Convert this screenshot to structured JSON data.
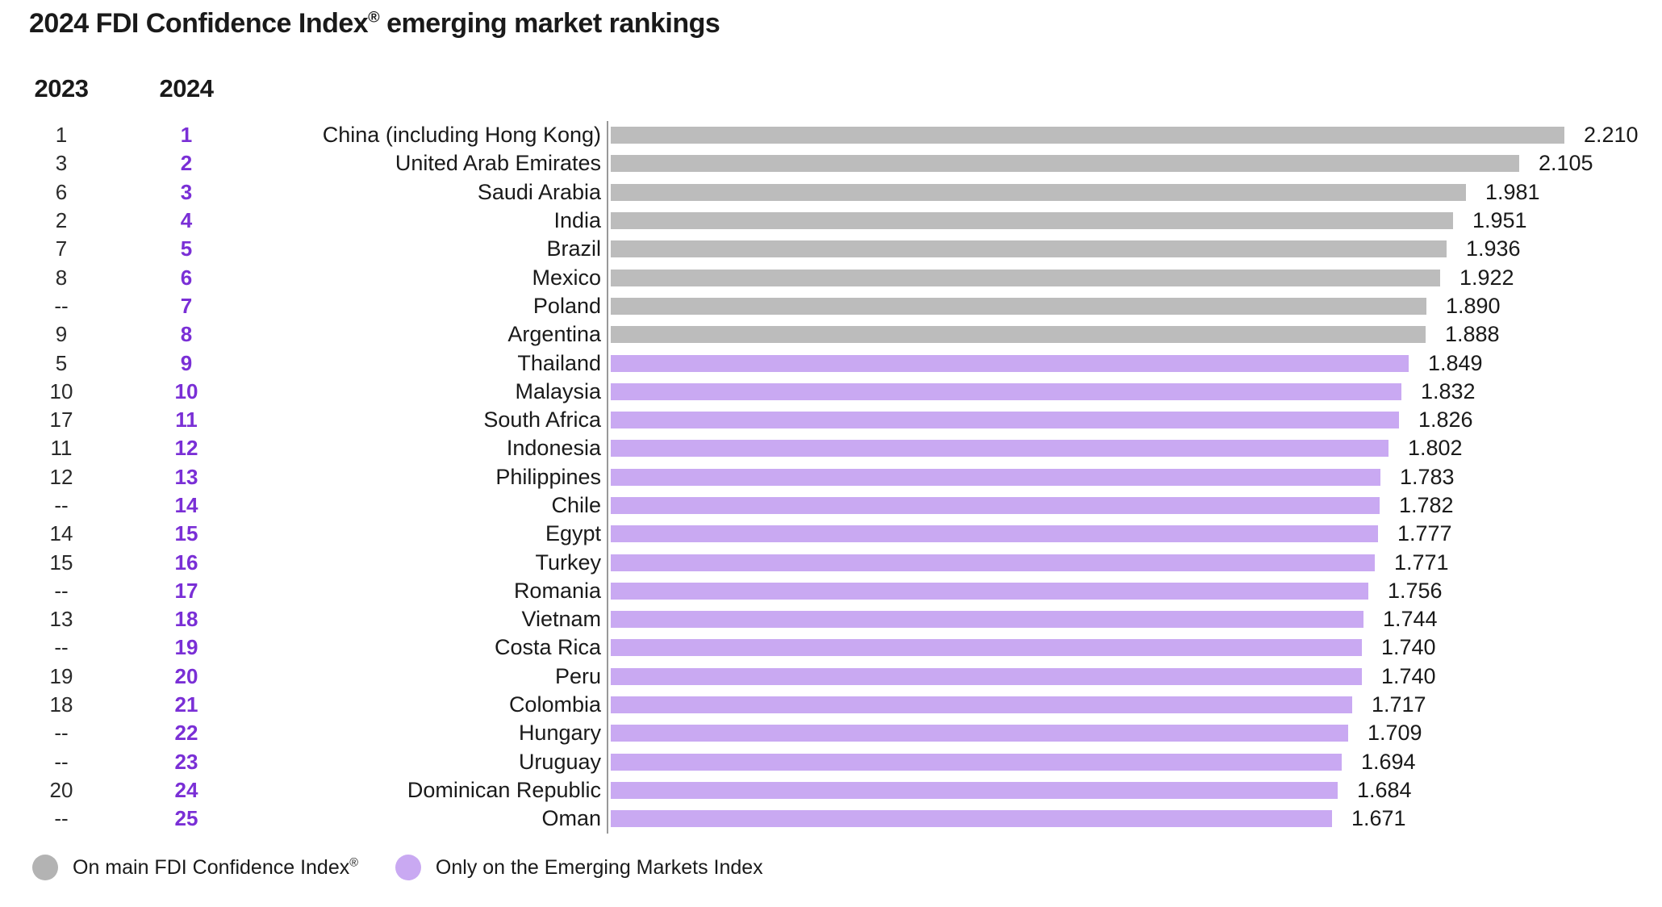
{
  "title": {
    "prefix": "2024 FDI Confidence Index",
    "registered": "®",
    "suffix": " emerging market rankings"
  },
  "column_headers": {
    "year_prev": "2023",
    "year_curr": "2024"
  },
  "legend": {
    "main_index": {
      "label_prefix": "On main FDI Confidence Index",
      "registered": "®",
      "color": "#b3b3b3"
    },
    "emerging_only": {
      "label": "Only on the Emerging Markets Index",
      "color": "#c9a9f2"
    }
  },
  "colors": {
    "text": "#1a1a1a",
    "bar_main": "#bcbcbc",
    "bar_emerging": "#c9a9f2",
    "rank_2024_text": "#7a2fd6",
    "axis_line": "#999999",
    "legend_main_dot": "#b3b3b3",
    "legend_emerging_dot": "#c9a9f2"
  },
  "chart_data": {
    "type": "bar",
    "orientation": "horizontal",
    "title": "2024 FDI Confidence Index® emerging market rankings",
    "value_range": [
      0,
      2.21
    ],
    "grid": false,
    "legend_position": "bottom-left",
    "groups": {
      "main": "On main FDI Confidence Index®",
      "emerging": "Only on the Emerging Markets Index"
    },
    "rows": [
      {
        "rank_2023": "1",
        "rank_2024": "1",
        "country": "China (including Hong Kong)",
        "value": 2.21,
        "value_label": "2.210",
        "group": "main"
      },
      {
        "rank_2023": "3",
        "rank_2024": "2",
        "country": "United Arab Emirates",
        "value": 2.105,
        "value_label": "2.105",
        "group": "main"
      },
      {
        "rank_2023": "6",
        "rank_2024": "3",
        "country": "Saudi Arabia",
        "value": 1.981,
        "value_label": "1.981",
        "group": "main"
      },
      {
        "rank_2023": "2",
        "rank_2024": "4",
        "country": "India",
        "value": 1.951,
        "value_label": "1.951",
        "group": "main"
      },
      {
        "rank_2023": "7",
        "rank_2024": "5",
        "country": "Brazil",
        "value": 1.936,
        "value_label": "1.936",
        "group": "main"
      },
      {
        "rank_2023": "8",
        "rank_2024": "6",
        "country": "Mexico",
        "value": 1.922,
        "value_label": "1.922",
        "group": "main"
      },
      {
        "rank_2023": "--",
        "rank_2024": "7",
        "country": "Poland",
        "value": 1.89,
        "value_label": "1.890",
        "group": "main"
      },
      {
        "rank_2023": "9",
        "rank_2024": "8",
        "country": "Argentina",
        "value": 1.888,
        "value_label": "1.888",
        "group": "main"
      },
      {
        "rank_2023": "5",
        "rank_2024": "9",
        "country": "Thailand",
        "value": 1.849,
        "value_label": "1.849",
        "group": "emerging"
      },
      {
        "rank_2023": "10",
        "rank_2024": "10",
        "country": "Malaysia",
        "value": 1.832,
        "value_label": "1.832",
        "group": "emerging"
      },
      {
        "rank_2023": "17",
        "rank_2024": "11",
        "country": "South Africa",
        "value": 1.826,
        "value_label": "1.826",
        "group": "emerging"
      },
      {
        "rank_2023": "11",
        "rank_2024": "12",
        "country": "Indonesia",
        "value": 1.802,
        "value_label": "1.802",
        "group": "emerging"
      },
      {
        "rank_2023": "12",
        "rank_2024": "13",
        "country": "Philippines",
        "value": 1.783,
        "value_label": "1.783",
        "group": "emerging"
      },
      {
        "rank_2023": "--",
        "rank_2024": "14",
        "country": "Chile",
        "value": 1.782,
        "value_label": "1.782",
        "group": "emerging"
      },
      {
        "rank_2023": "14",
        "rank_2024": "15",
        "country": "Egypt",
        "value": 1.777,
        "value_label": "1.777",
        "group": "emerging"
      },
      {
        "rank_2023": "15",
        "rank_2024": "16",
        "country": "Turkey",
        "value": 1.771,
        "value_label": "1.771",
        "group": "emerging"
      },
      {
        "rank_2023": "--",
        "rank_2024": "17",
        "country": "Romania",
        "value": 1.756,
        "value_label": "1.756",
        "group": "emerging"
      },
      {
        "rank_2023": "13",
        "rank_2024": "18",
        "country": "Vietnam",
        "value": 1.744,
        "value_label": "1.744",
        "group": "emerging"
      },
      {
        "rank_2023": "--",
        "rank_2024": "19",
        "country": "Costa Rica",
        "value": 1.74,
        "value_label": "1.740",
        "group": "emerging"
      },
      {
        "rank_2023": "19",
        "rank_2024": "20",
        "country": "Peru",
        "value": 1.74,
        "value_label": "1.740",
        "group": "emerging"
      },
      {
        "rank_2023": "18",
        "rank_2024": "21",
        "country": "Colombia",
        "value": 1.717,
        "value_label": "1.717",
        "group": "emerging"
      },
      {
        "rank_2023": "--",
        "rank_2024": "22",
        "country": "Hungary",
        "value": 1.709,
        "value_label": "1.709",
        "group": "emerging"
      },
      {
        "rank_2023": "--",
        "rank_2024": "23",
        "country": "Uruguay",
        "value": 1.694,
        "value_label": "1.694",
        "group": "emerging"
      },
      {
        "rank_2023": "20",
        "rank_2024": "24",
        "country": "Dominican Republic",
        "value": 1.684,
        "value_label": "1.684",
        "group": "emerging"
      },
      {
        "rank_2023": "--",
        "rank_2024": "25",
        "country": "Oman",
        "value": 1.671,
        "value_label": "1.671",
        "group": "emerging"
      }
    ]
  }
}
